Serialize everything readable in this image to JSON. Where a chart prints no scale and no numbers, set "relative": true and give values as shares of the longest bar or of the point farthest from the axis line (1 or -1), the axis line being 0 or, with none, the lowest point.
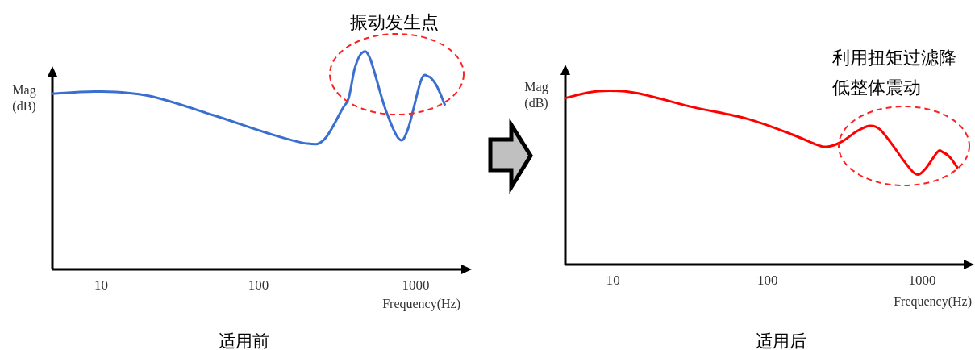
{
  "chart_data": [
    {
      "type": "line",
      "title": "适用前",
      "xlabel": "Frequency(Hz)",
      "ylabel": "Mag (dB)",
      "relative": true,
      "log": "x",
      "xlim": [
        4.9,
        1950
      ],
      "xticks": [
        10,
        100,
        1000
      ],
      "x": [
        4.9,
        9.5,
        20,
        52,
        112,
        204,
        263,
        342,
        375,
        411,
        459,
        514,
        641,
        787,
        896,
        1080,
        1200,
        1350,
        1530
      ],
      "series": [
        {
          "color": "#3a6fd0",
          "values": [
            0.81,
            0.82,
            0.8,
            0.71,
            0.63,
            0.58,
            0.6,
            0.74,
            0.79,
            0.93,
            1.0,
            0.97,
            0.74,
            0.6,
            0.65,
            0.87,
            0.89,
            0.85,
            0.76
          ]
        }
      ],
      "annotations": [
        "振动发生点"
      ]
    },
    {
      "type": "line",
      "title": "适用后",
      "xlabel": "Frequency(Hz)",
      "ylabel": "Mag (dB)",
      "relative": true,
      "log": "x",
      "xlim": [
        4.9,
        1860
      ],
      "xticks": [
        10,
        100,
        1000
      ],
      "x": [
        4.9,
        8,
        14,
        32,
        74,
        144,
        209,
        247,
        304,
        380,
        459,
        533,
        643,
        774,
        917,
        1047,
        1260,
        1350,
        1510,
        1690
      ],
      "series": [
        {
          "color": "#ff0000",
          "values": [
            0.96,
            1.0,
            0.99,
            0.91,
            0.84,
            0.75,
            0.69,
            0.68,
            0.71,
            0.77,
            0.8,
            0.78,
            0.69,
            0.59,
            0.52,
            0.55,
            0.65,
            0.65,
            0.62,
            0.56
          ]
        }
      ],
      "annotations": [
        "利用扭矩过滤降低整体震动"
      ]
    }
  ]
}
